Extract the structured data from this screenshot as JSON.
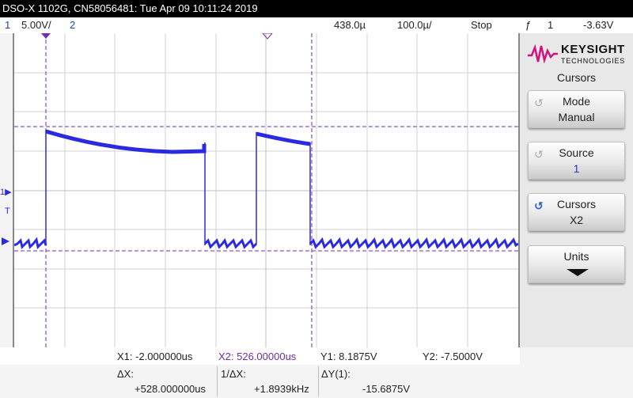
{
  "title_bar": "DSO-X 1102G, CN58056481: Tue Apr 09 10:11:24 2019",
  "status": {
    "ch1_num": "1",
    "ch1_scale": "5.00V/",
    "ch2_num": "2",
    "timebase": "438.0µ",
    "timescale": "100.0µ/",
    "run_state": "Stop",
    "trigger_symbol": "ƒ",
    "trigger_channel": "1",
    "trigger_level": "-3.63V"
  },
  "plot": {
    "ground_marker": "1▶",
    "trigger_marker": "T"
  },
  "brand": {
    "name": "KEYSIGHT",
    "sub": "TECHNOLOGIES"
  },
  "menu": {
    "title": "Cursors",
    "softkeys": [
      {
        "line1": "Mode",
        "line2": "Manual"
      },
      {
        "line1": "Source",
        "line2": "1"
      },
      {
        "line1": "Cursors",
        "line2": "X2"
      },
      {
        "line1": "Units",
        "line2": ""
      }
    ]
  },
  "measurements": {
    "x1": "X1: -2.000000us",
    "x2": "X2:  526.00000us",
    "y1": "Y1:  8.1875V",
    "y2": "Y2: -7.5000V",
    "dx_label": "ΔX:",
    "dx_value": "+528.000000us",
    "inv_dx_label": "1/ΔX:",
    "inv_dx_value": "+1.8939kHz",
    "dy_label": "ΔY(1):",
    "dy_value": "-15.6875V"
  },
  "colors": {
    "trace": "#2a2ae0",
    "cursor": "#7a2ab0",
    "grid": "#cfcfcf"
  }
}
